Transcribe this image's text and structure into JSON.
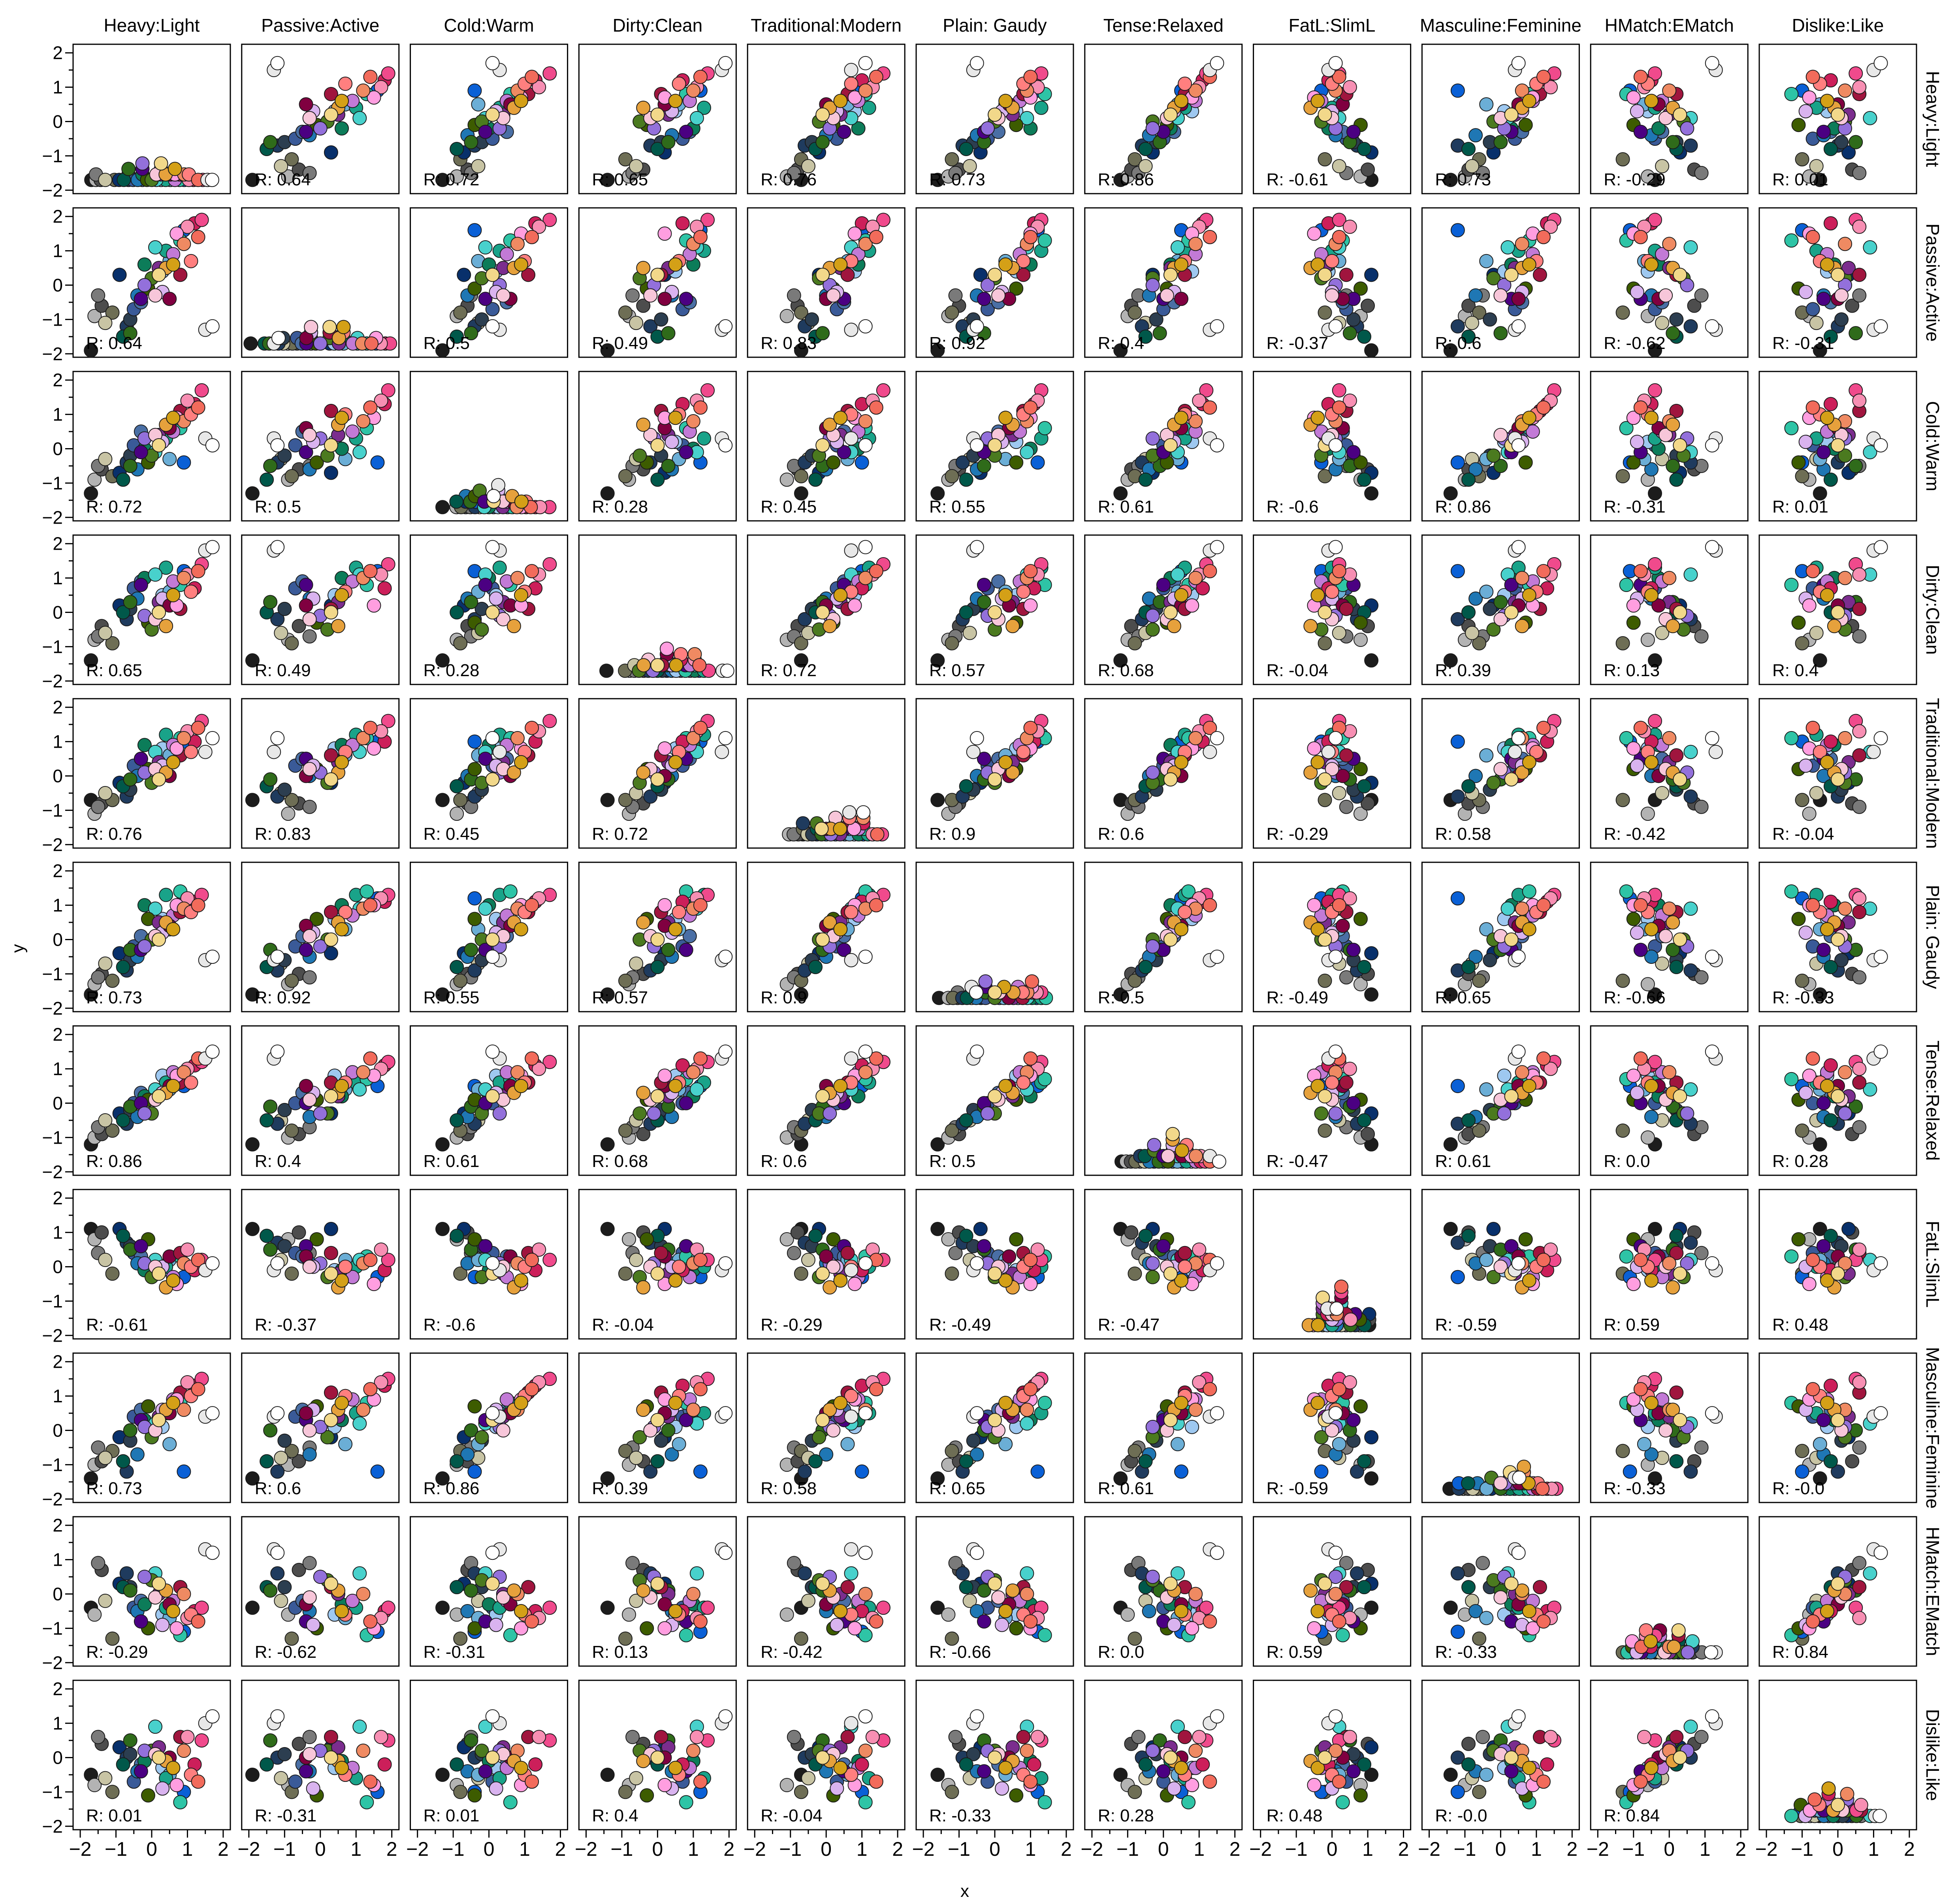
{
  "chart_data": {
    "type": "scatter",
    "layout": "scatter-matrix",
    "xlabel": "x",
    "ylabel": "y",
    "x_ticks": [
      -2,
      -1,
      0,
      1,
      2
    ],
    "y_ticks": [
      -2,
      -1,
      0,
      1,
      2
    ],
    "xlim": [
      -2.2,
      2.2
    ],
    "ylim": [
      -2.1,
      2.25
    ],
    "variables": [
      "Heavy:Light",
      "Passive:Active",
      "Cold:Warm",
      "Dirty:Clean",
      "Traditional:Modern",
      "Plain: Gaudy",
      "Tense:Relaxed",
      "FatL:SlimL",
      "Masculine:Feminine",
      "HMatch:EMatch",
      "Dislike:Like"
    ],
    "correlation_prefix": "R: ",
    "correlations": [
      [
        "",
        "0.64",
        "0.72",
        "0.65",
        "0.76",
        "0.73",
        "0.86",
        "-0.61",
        "0.73",
        "-0.29",
        "0.01"
      ],
      [
        "0.64",
        "",
        "0.5",
        "0.49",
        "0.83",
        "0.92",
        "0.4",
        "-0.37",
        "0.6",
        "-0.62",
        "-0.31"
      ],
      [
        "0.72",
        "0.5",
        "",
        "0.28",
        "0.45",
        "0.55",
        "0.61",
        "-0.6",
        "0.86",
        "-0.31",
        "0.01"
      ],
      [
        "0.65",
        "0.49",
        "0.28",
        "",
        "0.72",
        "0.57",
        "0.68",
        "-0.04",
        "0.39",
        "0.13",
        "0.4"
      ],
      [
        "0.76",
        "0.83",
        "0.45",
        "0.72",
        "",
        "0.9",
        "0.6",
        "-0.29",
        "0.58",
        "-0.42",
        "-0.04"
      ],
      [
        "0.73",
        "0.92",
        "0.55",
        "0.57",
        "0.9",
        "",
        "0.5",
        "-0.49",
        "0.65",
        "-0.66",
        "-0.33"
      ],
      [
        "0.86",
        "0.4",
        "0.61",
        "0.68",
        "0.6",
        "0.5",
        "",
        "-0.47",
        "0.61",
        "0.0",
        "0.28"
      ],
      [
        "-0.61",
        "-0.37",
        "-0.6",
        "-0.04",
        "-0.29",
        "-0.49",
        "-0.47",
        "",
        "-0.59",
        "0.59",
        "0.48"
      ],
      [
        "0.73",
        "0.6",
        "0.86",
        "0.39",
        "0.58",
        "0.65",
        "0.61",
        "-0.59",
        "",
        "-0.33",
        "-0.0"
      ],
      [
        "-0.29",
        "-0.62",
        "-0.31",
        "0.13",
        "-0.42",
        "-0.66",
        "0.0",
        "0.59",
        "-0.33",
        "",
        "0.84"
      ],
      [
        "0.01",
        "-0.31",
        "0.01",
        "0.4",
        "-0.04",
        "-0.33",
        "0.28",
        "0.48",
        "-0.0",
        "0.84",
        ""
      ]
    ],
    "items": [
      {
        "color": "#1c1c1c",
        "values": [
          -1.7,
          -1.9,
          -1.3,
          -1.4,
          -0.7,
          -1.6,
          -1.2,
          1.1,
          -1.4,
          -0.4,
          -0.5
        ]
      },
      {
        "color": "#b3b3b3",
        "values": [
          -1.6,
          -0.9,
          -0.9,
          -0.8,
          -1.1,
          -1.3,
          -1.0,
          0.8,
          -1.0,
          -0.6,
          -0.8
        ]
      },
      {
        "color": "#4d4d4d",
        "values": [
          -1.4,
          -0.6,
          -0.6,
          -0.4,
          -0.8,
          -1.0,
          -0.9,
          1.0,
          -0.9,
          0.7,
          0.4
        ]
      },
      {
        "color": "#7a7a7a",
        "values": [
          -1.5,
          -0.3,
          -0.5,
          -0.7,
          -0.9,
          -1.1,
          -0.7,
          0.4,
          -0.5,
          0.9,
          0.6
        ]
      },
      {
        "color": "#6e6e55",
        "values": [
          -1.1,
          -0.8,
          -0.8,
          -0.9,
          -0.7,
          -1.2,
          -0.8,
          -0.2,
          -0.6,
          -1.3,
          -1.0
        ]
      },
      {
        "color": "#c8c4a4",
        "values": [
          -1.3,
          -1.1,
          -0.3,
          -0.6,
          -0.5,
          -0.7,
          -0.5,
          0.2,
          -0.8,
          -0.2,
          -0.6
        ]
      },
      {
        "color": "#08306b",
        "values": [
          -0.9,
          0.3,
          -0.7,
          0.2,
          -0.2,
          -0.4,
          -0.3,
          1.1,
          -0.2,
          0.3,
          0.3
        ]
      },
      {
        "color": "#1f3b5e",
        "values": [
          -0.7,
          -1.2,
          -0.4,
          -0.2,
          -0.6,
          -0.9,
          -0.6,
          0.7,
          -1.2,
          0.6,
          0.0
        ]
      },
      {
        "color": "#2c3e50",
        "values": [
          -0.6,
          -1.0,
          -0.2,
          0.1,
          -0.4,
          -0.6,
          -0.2,
          0.6,
          -0.3,
          0.2,
          0.1
        ]
      },
      {
        "color": "#3a5a98",
        "values": [
          -0.5,
          -0.7,
          0.1,
          0.7,
          0.3,
          -0.2,
          0.0,
          0.4,
          0.4,
          -0.4,
          -0.7
        ]
      },
      {
        "color": "#4a6fa5",
        "values": [
          -0.3,
          -0.5,
          0.5,
          0.9,
          0.5,
          0.1,
          0.3,
          0.3,
          0.6,
          -0.2,
          -0.2
        ]
      },
      {
        "color": "#1f77b4",
        "values": [
          -0.4,
          -0.3,
          -0.6,
          0.4,
          0.0,
          -0.5,
          -0.4,
          0.1,
          -0.7,
          -0.5,
          -0.4
        ]
      },
      {
        "color": "#0a60d6",
        "values": [
          0.9,
          1.6,
          -0.4,
          1.2,
          1.0,
          1.2,
          0.5,
          -0.3,
          -1.2,
          -1.1,
          -1.0
        ]
      },
      {
        "color": "#9ec8f0",
        "values": [
          0.3,
          0.4,
          0.2,
          0.5,
          0.8,
          0.6,
          0.8,
          -0.1,
          0.1,
          -0.6,
          -0.3
        ]
      },
      {
        "color": "#6baed6",
        "values": [
          0.5,
          0.7,
          -0.3,
          0.6,
          0.6,
          0.3,
          0.4,
          0.2,
          -0.4,
          -0.7,
          -0.5
        ]
      },
      {
        "color": "#00584a",
        "values": [
          -0.8,
          -1.5,
          -0.9,
          0.0,
          -0.3,
          -0.8,
          -0.5,
          0.9,
          -0.9,
          0.2,
          -0.2
        ]
      },
      {
        "color": "#0c7c59",
        "values": [
          -0.2,
          0.6,
          0.0,
          1.0,
          0.9,
          1.0,
          0.2,
          -0.1,
          0.3,
          -0.3,
          -0.1
        ]
      },
      {
        "color": "#19a389",
        "values": [
          0.4,
          1.0,
          0.3,
          1.3,
          1.2,
          1.3,
          0.6,
          0.0,
          0.5,
          -0.4,
          -0.6
        ]
      },
      {
        "color": "#2ec4a6",
        "values": [
          0.8,
          1.3,
          0.6,
          0.8,
          1.1,
          1.4,
          0.7,
          0.3,
          0.8,
          -1.2,
          -1.3
        ]
      },
      {
        "color": "#48d1cc",
        "values": [
          0.1,
          1.1,
          -0.1,
          1.1,
          0.7,
          0.9,
          0.4,
          0.2,
          0.2,
          0.6,
          0.9
        ]
      },
      {
        "color": "#2f6b1a",
        "values": [
          -0.6,
          -1.4,
          -0.5,
          0.3,
          -0.1,
          -0.3,
          -0.1,
          0.5,
          0.0,
          0.1,
          0.5
        ]
      },
      {
        "color": "#3d5c00",
        "values": [
          -0.1,
          -0.1,
          -0.4,
          -0.3,
          0.2,
          0.6,
          0.1,
          0.8,
          0.7,
          -1.0,
          -1.1
        ]
      },
      {
        "color": "#4b7a1f",
        "values": [
          0.0,
          0.2,
          -0.2,
          -0.5,
          -0.2,
          0.0,
          -0.3,
          -0.3,
          -0.2,
          0.4,
          0.2
        ]
      },
      {
        "color": "#4b0082",
        "values": [
          -0.3,
          -0.4,
          -0.1,
          0.8,
          0.5,
          -0.3,
          0.0,
          0.6,
          0.3,
          -0.8,
          -0.4
        ]
      },
      {
        "color": "#7b2d8e",
        "values": [
          0.2,
          0.5,
          0.4,
          0.3,
          0.4,
          0.5,
          0.2,
          -0.2,
          0.4,
          0.0,
          0.3
        ]
      },
      {
        "color": "#9370db",
        "values": [
          -0.2,
          0.0,
          0.3,
          -0.1,
          0.1,
          -0.2,
          -0.3,
          0.1,
          0.1,
          0.5,
          0.2
        ]
      },
      {
        "color": "#c27ad6",
        "values": [
          0.6,
          0.9,
          0.5,
          0.9,
          0.9,
          0.7,
          0.9,
          -0.3,
          0.9,
          -0.2,
          -0.3
        ]
      },
      {
        "color": "#d9b3ef",
        "values": [
          0.3,
          -0.2,
          0.2,
          0.4,
          0.3,
          0.2,
          0.3,
          0.0,
          0.6,
          -0.9,
          -0.9
        ]
      },
      {
        "color": "#800040",
        "values": [
          0.5,
          -0.4,
          0.6,
          0.2,
          0.0,
          0.4,
          0.5,
          0.3,
          0.5,
          -0.3,
          0.0
        ]
      },
      {
        "color": "#a0153e",
        "values": [
          0.8,
          0.3,
          1.1,
          0.1,
          0.6,
          0.8,
          0.6,
          0.4,
          1.1,
          0.2,
          0.6
        ]
      },
      {
        "color": "#cc1f5a",
        "values": [
          1.2,
          1.8,
          1.3,
          0.7,
          1.0,
          1.1,
          1.1,
          -0.1,
          1.3,
          -0.5,
          -0.2
        ]
      },
      {
        "color": "#f04a8c",
        "values": [
          1.4,
          1.9,
          1.7,
          1.4,
          1.6,
          1.3,
          1.2,
          0.2,
          1.5,
          -0.4,
          0.5
        ]
      },
      {
        "color": "#f78fb3",
        "values": [
          1.0,
          1.7,
          1.4,
          1.1,
          1.3,
          1.2,
          1.0,
          0.5,
          1.4,
          -0.7,
          0.6
        ]
      },
      {
        "color": "#ff9ee0",
        "values": [
          0.7,
          1.5,
          0.9,
          0.2,
          0.8,
          1.0,
          0.8,
          -0.5,
          0.9,
          -1.0,
          -0.8
        ]
      },
      {
        "color": "#f7c6d9",
        "values": [
          0.1,
          -0.3,
          0.4,
          -0.2,
          0.2,
          0.1,
          0.1,
          0.0,
          0.0,
          -0.1,
          0.1
        ]
      },
      {
        "color": "#ef8a62",
        "values": [
          0.9,
          1.2,
          0.8,
          1.0,
          1.1,
          0.9,
          0.9,
          0.1,
          0.6,
          0.0,
          0.2
        ]
      },
      {
        "color": "#ff7f7f",
        "values": [
          1.1,
          0.7,
          1.0,
          0.6,
          0.7,
          0.8,
          0.6,
          0.0,
          1.0,
          -0.6,
          -0.5
        ]
      },
      {
        "color": "#f26b5b",
        "values": [
          1.3,
          1.4,
          1.2,
          1.2,
          1.4,
          1.0,
          1.3,
          0.2,
          1.2,
          -0.8,
          -0.7
        ]
      },
      {
        "color": "#e6a13c",
        "values": [
          0.4,
          0.5,
          0.7,
          -0.4,
          0.1,
          0.5,
          0.3,
          -0.6,
          0.6,
          0.1,
          -0.1
        ]
      },
      {
        "color": "#d4a017",
        "values": [
          0.6,
          0.6,
          0.9,
          0.5,
          0.4,
          0.3,
          0.5,
          -0.4,
          0.8,
          -0.5,
          -0.3
        ]
      },
      {
        "color": "#f2d88a",
        "values": [
          0.2,
          0.3,
          0.1,
          0.0,
          -0.1,
          0.0,
          0.2,
          -0.2,
          0.3,
          0.3,
          0.0
        ]
      },
      {
        "color": "#e8e8e8",
        "values": [
          1.5,
          -1.3,
          0.3,
          1.8,
          0.7,
          -0.6,
          1.3,
          -0.1,
          0.4,
          1.3,
          1.0
        ]
      },
      {
        "color": "#ffffff",
        "values": [
          1.7,
          -1.2,
          0.1,
          1.9,
          1.1,
          -0.5,
          1.5,
          0.1,
          0.5,
          1.2,
          1.2
        ]
      }
    ]
  }
}
